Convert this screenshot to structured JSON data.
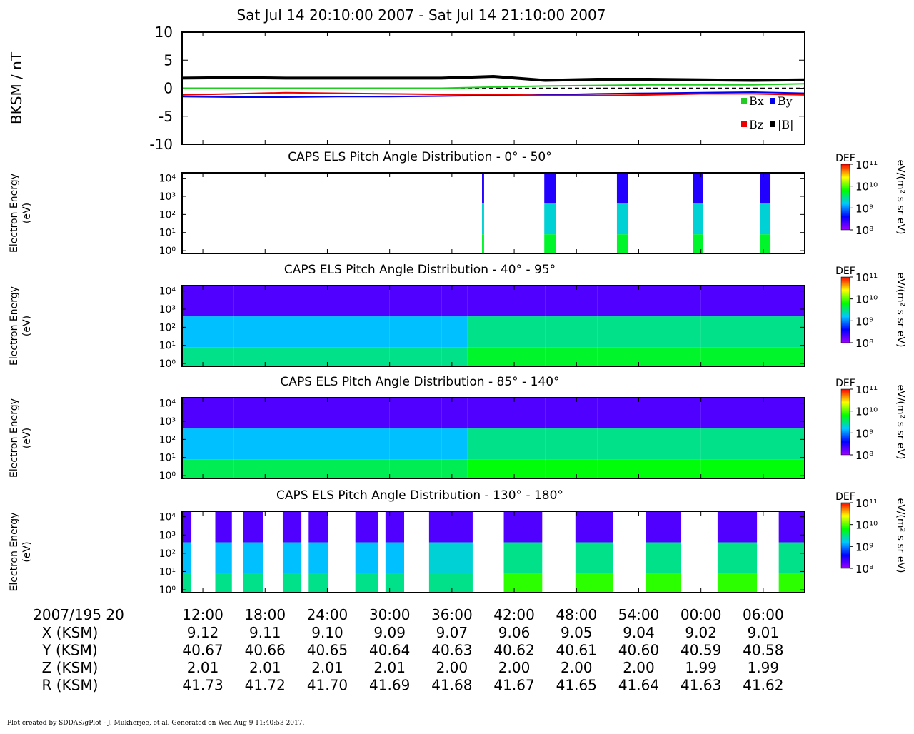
{
  "chart_data": [
    {
      "type": "line",
      "title": "Sat Jul 14 20:10:00 2007 - Sat Jul 14 21:10:00 2007",
      "y_label": "BKSM / nT",
      "x": [
        10,
        15,
        20,
        25,
        30,
        35,
        40,
        45,
        50,
        55,
        60,
        65,
        70
      ],
      "series": [
        {
          "name": "Bx",
          "color": "#22cc22",
          "values": [
            0,
            0,
            0,
            0,
            0,
            0,
            0.2,
            0.4,
            0.5,
            0.6,
            0.6,
            0.6,
            0.8
          ]
        },
        {
          "name": "By",
          "color": "#0000ee",
          "values": [
            -1.5,
            -1.6,
            -1.6,
            -1.5,
            -1.5,
            -1.4,
            -1.3,
            -1.2,
            -1.0,
            -0.9,
            -0.8,
            -0.7,
            -0.9
          ]
        },
        {
          "name": "Bz",
          "color": "#ee0000",
          "values": [
            -1.2,
            -1.0,
            -0.8,
            -0.9,
            -1.0,
            -1.1,
            -1.1,
            -1.3,
            -1.3,
            -1.2,
            -1.0,
            -1.0,
            -1.2
          ]
        },
        {
          "name": "|B|",
          "color": "#000000",
          "values": [
            1.8,
            1.9,
            1.8,
            1.8,
            1.8,
            1.8,
            2.1,
            1.4,
            1.6,
            1.6,
            1.5,
            1.4,
            1.5
          ]
        }
      ],
      "reference_line": 0,
      "ylim": [
        -10,
        10
      ],
      "yticks": [
        -10,
        -5,
        0,
        5,
        10
      ],
      "legend": "lower right"
    },
    {
      "type": "heatmap",
      "title": "CAPS ELS Pitch Angle Distribution - 0° - 50°",
      "y_label": [
        "Electron Energy",
        "(eV)"
      ],
      "log_y": true,
      "ylim": [
        0.7,
        20000
      ],
      "yticks": [
        {
          "value": 1,
          "label": "10⁰"
        },
        {
          "value": 10,
          "label": "10¹"
        },
        {
          "value": 100,
          "label": "10²"
        },
        {
          "value": 1000,
          "label": "10³"
        },
        {
          "value": 10000,
          "label": "10⁴"
        }
      ],
      "y_bins": [
        0.7,
        8,
        400,
        20000
      ],
      "x_bins": [
        10,
        38.9,
        39.1,
        44.9,
        46,
        51.9,
        53,
        59.2,
        60.2,
        65.7,
        66.7,
        70
      ],
      "values": [
        null,
        [
          5000000000.0,
          2000000000.0,
          300000000.0
        ],
        null,
        [
          5000000000.0,
          2000000000.0,
          300000000.0
        ],
        null,
        [
          5000000000.0,
          2000000000.0,
          300000000.0
        ],
        null,
        [
          5000000000.0,
          2000000000.0,
          300000000.0
        ],
        null,
        [
          5000000000.0,
          2000000000.0,
          300000000.0
        ],
        null
      ],
      "colorbar": {
        "label": "DEF",
        "unit": "eV/(m² s sr eV)",
        "lim": [
          100000000.0,
          100000000000.0
        ],
        "ticks": [
          {
            "value": 100000000.0,
            "label": "10⁸"
          },
          {
            "value": 1000000000.0,
            "label": "10⁹"
          },
          {
            "value": 10000000000.0,
            "label": "10¹⁰"
          },
          {
            "value": 100000000000.0,
            "label": "10¹¹"
          }
        ],
        "colors": [
          "#a000ff",
          "#0000ff",
          "#00c8ff",
          "#00ff00",
          "#ffff00",
          "#ff0000"
        ]
      }
    },
    {
      "type": "heatmap",
      "title": "CAPS ELS Pitch Angle Distribution - 40° - 95°",
      "y_label": [
        "Electron Energy",
        "(eV)"
      ],
      "log_y": true,
      "ylim": [
        0.7,
        20000
      ],
      "yticks": [
        {
          "value": 1,
          "label": "10⁰"
        },
        {
          "value": 10,
          "label": "10¹"
        },
        {
          "value": 100,
          "label": "10²"
        },
        {
          "value": 1000,
          "label": "10³"
        },
        {
          "value": 10000,
          "label": "10⁴"
        }
      ],
      "y_bins": [
        0.7,
        8,
        400,
        20000
      ],
      "x_bins": [
        10,
        15,
        20,
        25,
        30,
        35,
        37.5,
        40,
        45,
        50,
        55,
        60,
        65,
        70
      ],
      "values": [
        [
          3000000000.0,
          1500000000.0,
          200000000.0
        ],
        [
          3000000000.0,
          1500000000.0,
          200000000.0
        ],
        [
          3000000000.0,
          1500000000.0,
          200000000.0
        ],
        [
          3000000000.0,
          1500000000.0,
          200000000.0
        ],
        [
          3000000000.0,
          1500000000.0,
          200000000.0
        ],
        [
          3000000000.0,
          1500000000.0,
          200000000.0
        ],
        [
          5000000000.0,
          3000000000.0,
          200000000.0
        ],
        [
          5000000000.0,
          3000000000.0,
          200000000.0
        ],
        [
          5000000000.0,
          3000000000.0,
          200000000.0
        ],
        [
          5000000000.0,
          3000000000.0,
          200000000.0
        ],
        [
          5000000000.0,
          3000000000.0,
          200000000.0
        ],
        [
          5000000000.0,
          3000000000.0,
          200000000.0
        ],
        [
          5000000000.0,
          3000000000.0,
          200000000.0
        ]
      ],
      "colorbar": {
        "label": "DEF",
        "unit": "eV/(m² s sr eV)",
        "lim": [
          100000000.0,
          100000000000.0
        ],
        "ticks": [
          {
            "value": 100000000.0,
            "label": "10⁸"
          },
          {
            "value": 1000000000.0,
            "label": "10⁹"
          },
          {
            "value": 10000000000.0,
            "label": "10¹⁰"
          },
          {
            "value": 100000000000.0,
            "label": "10¹¹"
          }
        ],
        "colors": [
          "#a000ff",
          "#0000ff",
          "#00c8ff",
          "#00ff00",
          "#ffff00",
          "#ff0000"
        ]
      }
    },
    {
      "type": "heatmap",
      "title": "CAPS ELS Pitch Angle Distribution - 85° - 140°",
      "y_label": [
        "Electron Energy",
        "(eV)"
      ],
      "log_y": true,
      "ylim": [
        0.7,
        20000
      ],
      "yticks": [
        {
          "value": 1,
          "label": "10⁰"
        },
        {
          "value": 10,
          "label": "10¹"
        },
        {
          "value": 100,
          "label": "10²"
        },
        {
          "value": 1000,
          "label": "10³"
        },
        {
          "value": 10000,
          "label": "10⁴"
        }
      ],
      "y_bins": [
        0.7,
        8,
        400,
        20000
      ],
      "x_bins": [
        10,
        15,
        20,
        25,
        30,
        35,
        37.5,
        40,
        45,
        50,
        55,
        60,
        65,
        70
      ],
      "values": [
        [
          4000000000.0,
          1500000000.0,
          200000000.0
        ],
        [
          4000000000.0,
          1500000000.0,
          200000000.0
        ],
        [
          4000000000.0,
          1500000000.0,
          200000000.0
        ],
        [
          4000000000.0,
          1500000000.0,
          200000000.0
        ],
        [
          4000000000.0,
          1500000000.0,
          200000000.0
        ],
        [
          4000000000.0,
          1500000000.0,
          200000000.0
        ],
        [
          6000000000.0,
          3000000000.0,
          200000000.0
        ],
        [
          6000000000.0,
          3000000000.0,
          200000000.0
        ],
        [
          6000000000.0,
          3000000000.0,
          200000000.0
        ],
        [
          6000000000.0,
          3000000000.0,
          200000000.0
        ],
        [
          6000000000.0,
          3000000000.0,
          200000000.0
        ],
        [
          6000000000.0,
          3000000000.0,
          200000000.0
        ],
        [
          6000000000.0,
          3000000000.0,
          200000000.0
        ]
      ],
      "colorbar": {
        "label": "DEF",
        "unit": "eV/(m² s sr eV)",
        "lim": [
          100000000.0,
          100000000000.0
        ],
        "ticks": [
          {
            "value": 100000000.0,
            "label": "10⁸"
          },
          {
            "value": 1000000000.0,
            "label": "10⁹"
          },
          {
            "value": 10000000000.0,
            "label": "10¹⁰"
          },
          {
            "value": 100000000000.0,
            "label": "10¹¹"
          }
        ],
        "colors": [
          "#a000ff",
          "#0000ff",
          "#00c8ff",
          "#00ff00",
          "#ffff00",
          "#ff0000"
        ]
      }
    },
    {
      "type": "heatmap",
      "title": "CAPS ELS Pitch Angle Distribution - 130° - 180°",
      "y_label": [
        "Electron Energy",
        "(eV)"
      ],
      "log_y": true,
      "ylim": [
        0.7,
        20000
      ],
      "yticks": [
        {
          "value": 1,
          "label": "10⁰"
        },
        {
          "value": 10,
          "label": "10¹"
        },
        {
          "value": 100,
          "label": "10²"
        },
        {
          "value": 1000,
          "label": "10³"
        },
        {
          "value": 10000,
          "label": "10⁴"
        }
      ],
      "y_bins": [
        0.7,
        8,
        400,
        20000
      ],
      "x_bins": [
        10,
        10.9,
        13.2,
        14.8,
        15.9,
        17.8,
        19.7,
        21.5,
        22.2,
        24.1,
        26.7,
        28.9,
        29.6,
        31.4,
        33.8,
        38,
        41,
        44.7,
        47.9,
        51.5,
        54.7,
        58.1,
        61.6,
        65.4,
        67.5,
        70
      ],
      "values": [
        [
          3000000000.0,
          1500000000.0,
          200000000.0
        ],
        null,
        [
          3000000000.0,
          1500000000.0,
          200000000.0
        ],
        null,
        [
          3000000000.0,
          1500000000.0,
          200000000.0
        ],
        null,
        [
          3000000000.0,
          1500000000.0,
          200000000.0
        ],
        null,
        [
          3000000000.0,
          1500000000.0,
          200000000.0
        ],
        null,
        [
          3000000000.0,
          1500000000.0,
          200000000.0
        ],
        null,
        [
          3000000000.0,
          1500000000.0,
          200000000.0
        ],
        null,
        [
          3000000000.0,
          2000000000.0,
          200000000.0
        ],
        null,
        [
          8000000000.0,
          3000000000.0,
          200000000.0
        ],
        null,
        [
          8000000000.0,
          3000000000.0,
          200000000.0
        ],
        null,
        [
          8000000000.0,
          3000000000.0,
          200000000.0
        ],
        null,
        [
          8000000000.0,
          3000000000.0,
          200000000.0
        ],
        null,
        [
          8000000000.0,
          3000000000.0,
          200000000.0
        ]
      ],
      "colorbar": {
        "label": "DEF",
        "unit": "eV/(m² s sr eV)",
        "lim": [
          100000000.0,
          100000000000.0
        ],
        "ticks": [
          {
            "value": 100000000.0,
            "label": "10⁸"
          },
          {
            "value": 1000000000.0,
            "label": "10⁹"
          },
          {
            "value": 10000000000.0,
            "label": "10¹⁰"
          },
          {
            "value": 100000000000.0,
            "label": "10¹¹"
          }
        ],
        "colors": [
          "#a000ff",
          "#0000ff",
          "#00c8ff",
          "#00ff00",
          "#ffff00",
          "#ff0000"
        ]
      }
    }
  ],
  "x_axis": {
    "label": "2007/195 20",
    "xlim": [
      10,
      70
    ],
    "xticks": [
      {
        "value": 12,
        "label": "12:00"
      },
      {
        "value": 18,
        "label": "18:00"
      },
      {
        "value": 24,
        "label": "24:00"
      },
      {
        "value": 30,
        "label": "30:00"
      },
      {
        "value": 36,
        "label": "36:00"
      },
      {
        "value": 42,
        "label": "42:00"
      },
      {
        "value": 48,
        "label": "48:00"
      },
      {
        "value": 54,
        "label": "54:00"
      },
      {
        "value": 60,
        "label": "00:00"
      },
      {
        "value": 66,
        "label": "06:00"
      }
    ]
  },
  "ephemeris": [
    {
      "label": "X (KSM)",
      "values": [
        "9.12",
        "9.11",
        "9.10",
        "9.09",
        "9.07",
        "9.06",
        "9.05",
        "9.04",
        "9.02",
        "9.01"
      ]
    },
    {
      "label": "Y (KSM)",
      "values": [
        "40.67",
        "40.66",
        "40.65",
        "40.64",
        "40.63",
        "40.62",
        "40.61",
        "40.60",
        "40.59",
        "40.58"
      ]
    },
    {
      "label": "Z (KSM)",
      "values": [
        "2.01",
        "2.01",
        "2.01",
        "2.01",
        "2.00",
        "2.00",
        "2.00",
        "2.00",
        "1.99",
        "1.99"
      ]
    },
    {
      "label": "R (KSM)",
      "values": [
        "41.73",
        "41.72",
        "41.70",
        "41.69",
        "41.68",
        "41.67",
        "41.65",
        "41.64",
        "41.63",
        "41.62"
      ]
    }
  ],
  "footer": "Plot created by SDDAS/gPlot - J. Mukherjee, et al.  Generated on Wed Aug 9 11:40:53 2017."
}
